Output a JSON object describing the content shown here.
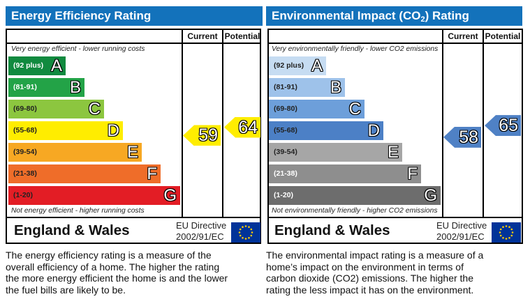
{
  "panels": [
    {
      "title_main": "Energy Efficiency Rating",
      "title_sub": "",
      "title_end": "",
      "columns": {
        "current": "Current",
        "potential": "Potential"
      },
      "top_note": "Very energy efficient - lower running costs",
      "bottom_note": "Not energy efficient - higher running costs",
      "bands": [
        {
          "range": "(92 plus)",
          "letter": "A",
          "color": "#118a3f",
          "label_color": "#ffffff"
        },
        {
          "range": "(81-91)",
          "letter": "B",
          "color": "#23a347",
          "label_color": "#ffffff"
        },
        {
          "range": "(69-80)",
          "letter": "C",
          "color": "#8cc63f",
          "label_color": "#222222"
        },
        {
          "range": "(55-68)",
          "letter": "D",
          "color": "#ffed00",
          "label_color": "#222222"
        },
        {
          "range": "(39-54)",
          "letter": "E",
          "color": "#f7a823",
          "label_color": "#222222"
        },
        {
          "range": "(21-38)",
          "letter": "F",
          "color": "#ef6d29",
          "label_color": "#222222"
        },
        {
          "range": "(1-20)",
          "letter": "G",
          "color": "#e31d25",
          "label_color": "#222222"
        }
      ],
      "current": 59,
      "potential": 64,
      "arrow_color": "#ffed00",
      "footer": {
        "region": "England & Wales",
        "directive_line1": "EU Directive",
        "directive_line2": "2002/91/EC"
      },
      "description_lines": [
        "The energy efficiency rating is a measure of the",
        "overall efficiency of a home. The higher the rating",
        "the more energy efficient the home is and the lower",
        "the fuel bills are likely to be."
      ]
    },
    {
      "title_main": "Environmental Impact (CO",
      "title_sub": "2",
      "title_end": ") Rating",
      "columns": {
        "current": "Current",
        "potential": "Potential"
      },
      "top_note": "Very environmentally friendly - lower CO2 emissions",
      "bottom_note": "Not environmentally friendly - higher CO2 emissions",
      "bands": [
        {
          "range": "(92 plus)",
          "letter": "A",
          "color": "#c6dcf2",
          "label_color": "#222222"
        },
        {
          "range": "(81-91)",
          "letter": "B",
          "color": "#9ec2ea",
          "label_color": "#222222"
        },
        {
          "range": "(69-80)",
          "letter": "C",
          "color": "#6d9fda",
          "label_color": "#222222"
        },
        {
          "range": "(55-68)",
          "letter": "D",
          "color": "#4c80c6",
          "label_color": "#222222"
        },
        {
          "range": "(39-54)",
          "letter": "E",
          "color": "#a6a6a6",
          "label_color": "#222222"
        },
        {
          "range": "(21-38)",
          "letter": "F",
          "color": "#8e8e8e",
          "label_color": "#ffffff"
        },
        {
          "range": "(1-20)",
          "letter": "G",
          "color": "#6d6d6d",
          "label_color": "#ffffff"
        }
      ],
      "current": 58,
      "potential": 65,
      "arrow_color": "#4f81c5",
      "footer": {
        "region": "England & Wales",
        "directive_line1": "EU Directive",
        "directive_line2": "2002/91/EC"
      },
      "description_lines": [
        "The environmental impact rating is a measure of a",
        "home’s impact on the environment in terms of",
        "carbon dioxide (CO2) emissions. The higher the",
        "rating the less impact it has on the environment."
      ]
    }
  ],
  "eu_flag": {
    "field_color": "#003399",
    "star_color": "#ffcc00",
    "star_count": 12
  }
}
